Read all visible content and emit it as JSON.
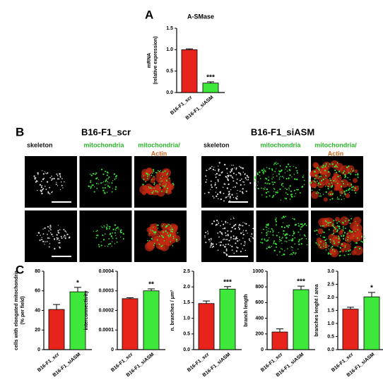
{
  "panels": {
    "a": "A",
    "b": "B",
    "c": "C"
  },
  "microscopy": {
    "groups": [
      {
        "title": "B16-F1_scr",
        "columns": [
          "skeleton",
          "mitochondria",
          "mitochondria/",
          "Actin"
        ]
      },
      {
        "title": "B16-F1_siASM",
        "columns": [
          "skeleton",
          "mitochondria",
          "mitochondria/",
          "Actin"
        ]
      }
    ]
  },
  "chart_data": [
    {
      "type": "bar",
      "title": "A-SMase",
      "y_label": [
        "mRNA",
        "(relative expression)"
      ],
      "categories": [
        "B16-F1_scr",
        "B16-F1_siASM"
      ],
      "values": [
        1.0,
        0.22
      ],
      "errors": [
        0.02,
        0.03
      ],
      "colors": [
        "#e8231b",
        "#3de83a"
      ],
      "ylim": [
        0,
        1.5
      ],
      "yticks": [
        {
          "value": 0,
          "label": "0.0"
        },
        0.5,
        {
          "value": 1,
          "label": "1.0"
        },
        1.5
      ],
      "significance": "***"
    },
    {
      "type": "bar",
      "y_label": [
        "cells with elongated mitochondria",
        "(% per field)"
      ],
      "categories": [
        "B16-F1_scr",
        "B16-F1_siASM"
      ],
      "values": [
        41,
        59
      ],
      "errors": [
        5,
        4.5
      ],
      "colors": [
        "#e8231b",
        "#3de83a"
      ],
      "ylim": [
        0,
        80
      ],
      "yticks": [
        0,
        20,
        40,
        60,
        80
      ],
      "significance": "*"
    },
    {
      "type": "bar",
      "y_label": [
        "interconnectivity"
      ],
      "categories": [
        "B16-F1_scr",
        "B16-F1_siASM"
      ],
      "values": [
        0.00026,
        0.0003
      ],
      "errors": [
        5e-06,
        1e-05
      ],
      "colors": [
        "#e8231b",
        "#3de83a"
      ],
      "ylim": [
        0,
        0.0004
      ],
      "yticks": [
        0,
        0.0001,
        0.0002,
        0.0003,
        0.0004
      ],
      "significance": "**"
    },
    {
      "type": "bar",
      "y_label": [
        "n. branches / μm²"
      ],
      "categories": [
        "B16-F1_scr",
        "B16-F1_siASM"
      ],
      "values": [
        1.47,
        1.93
      ],
      "errors": [
        0.08,
        0.08
      ],
      "colors": [
        "#e8231b",
        "#3de83a"
      ],
      "ylim": [
        0,
        2.5
      ],
      "yticks": [
        {
          "value": 0,
          "label": "0.0"
        },
        0.5,
        {
          "value": 1,
          "label": "1.0"
        },
        1.5,
        {
          "value": 2,
          "label": "2.0"
        },
        2.5
      ],
      "significance": "***"
    },
    {
      "type": "bar",
      "y_label": [
        "branch length"
      ],
      "categories": [
        "B16-F1_scr",
        "B16-F1_siASM"
      ],
      "values": [
        225,
        765
      ],
      "errors": [
        40,
        45
      ],
      "colors": [
        "#e8231b",
        "#3de83a"
      ],
      "ylim": [
        0,
        1000
      ],
      "yticks": [
        0,
        200,
        400,
        600,
        800,
        1000
      ],
      "significance": "***"
    },
    {
      "type": "bar",
      "y_label": [
        "branches lenght / area"
      ],
      "categories": [
        "B16-F1_scr",
        "B16-F1_siASM"
      ],
      "values": [
        1.55,
        2.02
      ],
      "errors": [
        0.07,
        0.17
      ],
      "colors": [
        "#e8231b",
        "#3de83a"
      ],
      "ylim": [
        0,
        3
      ],
      "yticks": [
        {
          "value": 0,
          "label": "0.0"
        },
        0.5,
        {
          "value": 1,
          "label": "1.0"
        },
        1.5,
        {
          "value": 2,
          "label": "2.0"
        },
        2.5,
        {
          "value": 3,
          "label": "3.0"
        }
      ],
      "significance": "*"
    }
  ]
}
